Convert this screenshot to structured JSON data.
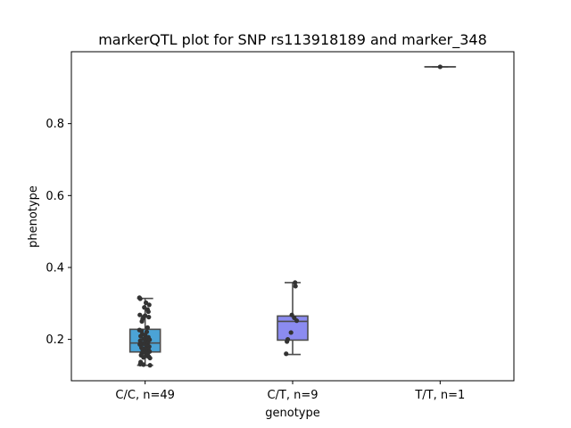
{
  "chart_data": {
    "type": "box",
    "title": "markerQTL plot for SNP rs113918189 and marker_348",
    "xlabel": "genotype",
    "ylabel": "phenotype",
    "ylim": [
      0.085,
      1.0
    ],
    "yticks": [
      0.2,
      0.4,
      0.6,
      0.8
    ],
    "ytick_labels": [
      "0.2",
      "0.4",
      "0.6",
      "0.8"
    ],
    "grid": false,
    "categories": [
      "C/C, n=49",
      "C/T, n=9",
      "T/T, n=1"
    ],
    "boxes": [
      {
        "category": "C/C, n=49",
        "color": "#4ba3d6",
        "whisker_low": 0.128,
        "q1": 0.165,
        "median": 0.19,
        "q3": 0.228,
        "whisker_high": 0.314,
        "points": [
          [
            -0.07,
            0.316
          ],
          [
            -0.06,
            0.313
          ],
          [
            0.01,
            0.302
          ],
          [
            0.05,
            0.296
          ],
          [
            -0.01,
            0.289
          ],
          [
            0.03,
            0.283
          ],
          [
            0.04,
            0.277
          ],
          [
            -0.065,
            0.268
          ],
          [
            0.0,
            0.266
          ],
          [
            0.045,
            0.262
          ],
          [
            -0.02,
            0.262
          ],
          [
            -0.03,
            0.257
          ],
          [
            -0.04,
            0.25
          ],
          [
            0.03,
            0.233
          ],
          [
            -0.07,
            0.226
          ],
          [
            -0.045,
            0.224
          ],
          [
            0.02,
            0.221
          ],
          [
            -0.035,
            0.215
          ],
          [
            0.0,
            0.212
          ],
          [
            -0.055,
            0.209
          ],
          [
            0.04,
            0.206
          ],
          [
            0.02,
            0.203
          ],
          [
            -0.02,
            0.201
          ],
          [
            0.055,
            0.199
          ],
          [
            -0.06,
            0.196
          ],
          [
            0.01,
            0.193
          ],
          [
            0.035,
            0.19
          ],
          [
            -0.025,
            0.188
          ],
          [
            -0.065,
            0.186
          ],
          [
            0.015,
            0.182
          ],
          [
            0.05,
            0.18
          ],
          [
            -0.045,
            0.177
          ],
          [
            0.0,
            0.175
          ],
          [
            0.04,
            0.173
          ],
          [
            -0.03,
            0.171
          ],
          [
            0.02,
            0.168
          ],
          [
            0.055,
            0.166
          ],
          [
            -0.01,
            0.164
          ],
          [
            -0.04,
            0.162
          ],
          [
            0.03,
            0.159
          ],
          [
            -0.05,
            0.156
          ],
          [
            0.01,
            0.154
          ],
          [
            0.045,
            0.152
          ],
          [
            -0.02,
            0.15
          ],
          [
            0.06,
            0.148
          ],
          [
            -0.055,
            0.137
          ],
          [
            -0.06,
            0.131
          ],
          [
            0.06,
            0.128
          ],
          [
            -0.02,
            0.13
          ]
        ]
      },
      {
        "category": "C/T, n=9",
        "color": "#8b8bf0",
        "whisker_low": 0.158,
        "q1": 0.198,
        "median": 0.25,
        "q3": 0.265,
        "whisker_high": 0.358,
        "points": [
          [
            0.03,
            0.358
          ],
          [
            0.035,
            0.348
          ],
          [
            -0.01,
            0.268
          ],
          [
            0.02,
            0.26
          ],
          [
            0.05,
            0.252
          ],
          [
            -0.02,
            0.219
          ],
          [
            -0.06,
            0.2
          ],
          [
            -0.07,
            0.194
          ],
          [
            -0.08,
            0.16
          ]
        ]
      },
      {
        "category": "T/T, n=1",
        "color": "#9a9ae6",
        "whisker_low": 0.958,
        "q1": 0.958,
        "median": 0.958,
        "q3": 0.958,
        "whisker_high": 0.958,
        "points": [
          [
            0.0,
            0.958
          ]
        ]
      }
    ]
  }
}
